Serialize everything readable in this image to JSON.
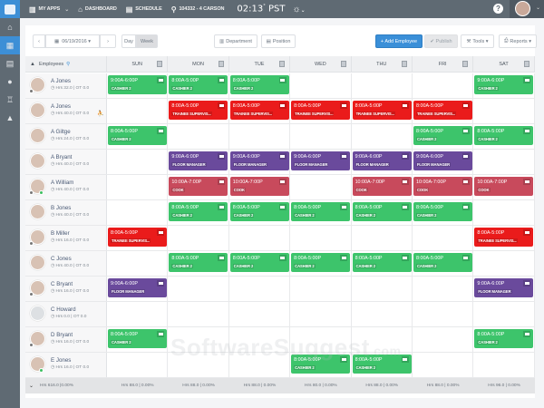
{
  "topbar": {
    "apps_label": "MY APPS",
    "dashboard_label": "DASHBOARD",
    "schedule_label": "SCHEDULE",
    "location_label": "104332 - 4 CARSON",
    "clock": "02:13",
    "clock_suffix": "PST",
    "help_label": "?"
  },
  "sidebar": {
    "items": [
      {
        "name": "home",
        "glyph": "⌂"
      },
      {
        "name": "schedule",
        "glyph": "▦",
        "active": true
      },
      {
        "name": "timesheet",
        "glyph": "▤"
      },
      {
        "name": "people",
        "glyph": "●"
      },
      {
        "name": "awards",
        "glyph": "♖"
      },
      {
        "name": "reports",
        "glyph": "▲"
      }
    ]
  },
  "toolbar": {
    "prev": "‹",
    "date": "06/19/2016 ▾",
    "next": "›",
    "day": "Day",
    "week": "Week",
    "department": "Department",
    "position": "Position",
    "add_employee": "+ Add Employee",
    "publish": "✔ Publish",
    "tools": "Tools ▾",
    "reports": "Reports ▾"
  },
  "grid": {
    "employees_header": "Employees",
    "days": [
      "SUN",
      "MON",
      "TUE",
      "WED",
      "THU",
      "FRI",
      "SAT"
    ],
    "employees": [
      {
        "name": "A Jones",
        "meta": "◷ Hrs 32.0 | OT 0.0",
        "dot": "gray",
        "shifts": [
          [
            "9:00A-6:00P",
            "CASHIER 2",
            "cashier"
          ],
          [
            "8:00A-5:00P",
            "CASHIER 2",
            "cashier"
          ],
          [
            "8:00A-5:00P",
            "CASHIER 2",
            "cashier"
          ],
          null,
          null,
          null,
          [
            "9:00A-6:00P",
            "CASHIER 2",
            "cashier"
          ]
        ]
      },
      {
        "name": "A Jones",
        "meta": "◷ Hrs 40.0 | OT 0.0",
        "flag": "⛹",
        "shifts": [
          null,
          [
            "8:00A-5:00P",
            "TRAINEE SUPERVIS...",
            "trainee"
          ],
          [
            "8:00A-5:00P",
            "TRAINEE SUPERVIS...",
            "trainee"
          ],
          [
            "8:00A-5:00P",
            "TRAINEE SUPERVIS...",
            "trainee"
          ],
          [
            "8:00A-5:00P",
            "TRAINEE SUPERVIS...",
            "trainee"
          ],
          [
            "8:00A-5:00P",
            "TRAINEE SUPERVIS...",
            "trainee"
          ],
          null
        ]
      },
      {
        "name": "A Giltge",
        "meta": "◷ Hrs 24.0 | OT 0.0",
        "shifts": [
          [
            "8:00A-5:00P",
            "CASHIER 2",
            "cashier"
          ],
          null,
          null,
          null,
          null,
          [
            "8:00A-5:00P",
            "CASHIER 2",
            "cashier"
          ],
          [
            "8:00A-5:00P",
            "CASHIER 2",
            "cashier"
          ]
        ]
      },
      {
        "name": "A Bryant",
        "meta": "◷ Hrs 40.0 | OT 0.0",
        "shifts": [
          null,
          [
            "9:00A-6:00P",
            "FLOOR MANAGER",
            "floor"
          ],
          [
            "9:00A-6:00P",
            "FLOOR MANAGER",
            "floor"
          ],
          [
            "9:00A-6:00P",
            "FLOOR MANAGER",
            "floor"
          ],
          [
            "9:00A-6:00P",
            "FLOOR MANAGER",
            "floor"
          ],
          [
            "9:00A-6:00P",
            "FLOOR MANAGER",
            "floor"
          ],
          null
        ]
      },
      {
        "name": "A William",
        "meta": "◷ Hrs 40.0 | OT 0.0",
        "dot": "both",
        "shifts": [
          null,
          [
            "10:00A-7:00P",
            "COOK",
            "cook"
          ],
          [
            "10:00A-7:00P",
            "COOK",
            "cook"
          ],
          null,
          [
            "10:00A-7:00P",
            "COOK",
            "cook"
          ],
          [
            "10:00A-7:00P",
            "COOK",
            "cook"
          ],
          [
            "10:00A-7:00P",
            "COOK",
            "cook"
          ]
        ]
      },
      {
        "name": "B Jones",
        "meta": "◷ Hrs 40.0 | OT 0.0",
        "shifts": [
          null,
          [
            "8:00A-5:00P",
            "CASHIER 2",
            "cashier"
          ],
          [
            "8:00A-5:00P",
            "CASHIER 2",
            "cashier"
          ],
          [
            "8:00A-5:00P",
            "CASHIER 2",
            "cashier"
          ],
          [
            "8:00A-5:00P",
            "CASHIER 2",
            "cashier"
          ],
          [
            "8:00A-5:00P",
            "CASHIER 2",
            "cashier"
          ],
          null
        ]
      },
      {
        "name": "B Miller",
        "meta": "◷ Hrs 16.0 | OT 0.0",
        "dot": "gray",
        "shifts": [
          [
            "8:00A-5:00P",
            "TRAINEE SUPERVIS...",
            "trainee"
          ],
          null,
          null,
          null,
          null,
          null,
          [
            "8:00A-5:00P",
            "TRAINEE SUPERVIS...",
            "trainee"
          ]
        ]
      },
      {
        "name": "C Jones",
        "meta": "◷ Hrs 40.0 | OT 0.0",
        "shifts": [
          null,
          [
            "8:00A-5:00P",
            "CASHIER 2",
            "cashier"
          ],
          [
            "8:00A-5:00P",
            "CASHIER 2",
            "cashier"
          ],
          [
            "8:00A-5:00P",
            "CASHIER 2",
            "cashier"
          ],
          [
            "8:00A-5:00P",
            "CASHIER 2",
            "cashier"
          ],
          [
            "8:00A-5:00P",
            "CASHIER 2",
            "cashier"
          ],
          null
        ]
      },
      {
        "name": "C Bryant",
        "meta": "◷ Hrs 16.0 | OT 0.0",
        "dot": "gray",
        "shifts": [
          [
            "9:00A-6:00P",
            "FLOOR MANAGER",
            "floor"
          ],
          null,
          null,
          null,
          null,
          null,
          [
            "9:00A-6:00P",
            "FLOOR MANAGER",
            "floor"
          ]
        ]
      },
      {
        "name": "C Howard",
        "meta": "◷ Hrs 0.0 | OT 0.0",
        "blank": true,
        "shifts": [
          null,
          null,
          null,
          null,
          null,
          null,
          null
        ]
      },
      {
        "name": "D Bryant",
        "meta": "◷ Hrs 16.0 | OT 0.0",
        "dot": "gray",
        "shifts": [
          [
            "8:00A-5:00P",
            "CASHIER 2",
            "cashier"
          ],
          null,
          null,
          null,
          null,
          null,
          [
            "8:00A-5:00P",
            "CASHIER 2",
            "cashier"
          ]
        ]
      },
      {
        "name": "E Jones",
        "meta": "◷ Hrs 16.0 | OT 0.0",
        "dot": "green",
        "shifts": [
          null,
          null,
          null,
          [
            "8:00A-5:00P",
            "CASHIER 2",
            "cashier"
          ],
          [
            "8:00A-5:00P",
            "CASHIER 2",
            "cashier"
          ],
          null,
          null
        ]
      }
    ],
    "footer": {
      "total": "Hrs 616.0 |0.00%",
      "days": [
        "Hrs 88.0 | 0.00%",
        "Hrs 88.0 | 0.00%",
        "Hrs 88.0 | 0.00%",
        "Hrs 80.0 | 0.00%",
        "Hrs 88.0 | 0.00%",
        "Hrs 88.0 | 0.00%",
        "Hrs 96.0 | 0.00%"
      ]
    }
  },
  "watermark": {
    "main": "SoftwareSuggest",
    "suffix": ".com"
  },
  "colors": {
    "cashier": "#3dc46b",
    "trainee": "#ea1b1b",
    "floor_manager": "#6a4a9c",
    "cook": "#c84a5c",
    "primary": "#3a8fd8",
    "topbar": "#5f6a73"
  }
}
